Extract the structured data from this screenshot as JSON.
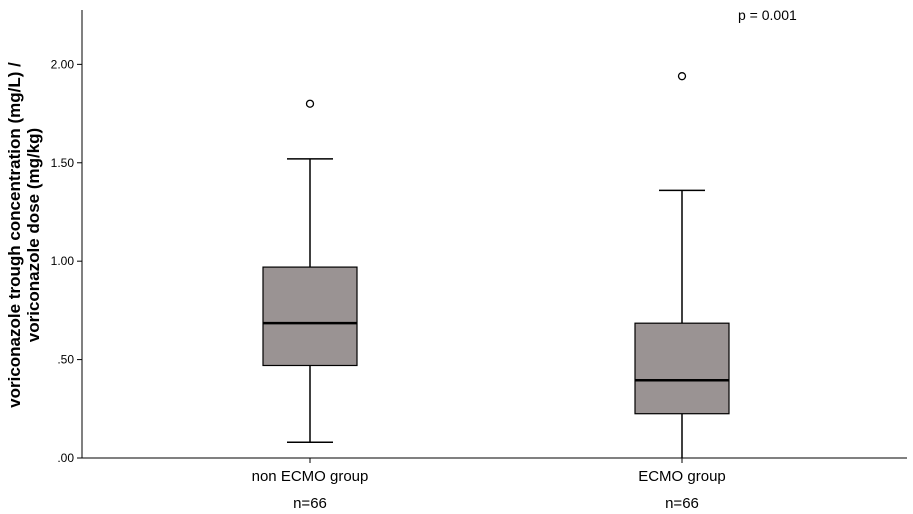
{
  "chart_data": {
    "type": "boxplot",
    "ylabel_lines": [
      "voriconazole trough concentration (mg/L) /",
      "voriconazole dose (mg/kg)"
    ],
    "ylim": [
      0,
      2.2
    ],
    "yticks": [
      0,
      0.5,
      1.0,
      1.5,
      2.0
    ],
    "ytick_labels": [
      ".00",
      ".50",
      "1.00",
      "1.50",
      "2.00"
    ],
    "box_color": "#9a9393",
    "annotation": "p = 0.001",
    "groups": [
      {
        "label": "non ECMO group",
        "n_label": "n=66",
        "whisker_low": 0.08,
        "q1": 0.47,
        "median": 0.685,
        "q3": 0.97,
        "whisker_high": 1.52,
        "outliers": [
          1.8
        ]
      },
      {
        "label": "ECMO group",
        "n_label": "n=66",
        "whisker_low": 0.0,
        "q1": 0.225,
        "median": 0.395,
        "q3": 0.685,
        "whisker_high": 1.36,
        "outliers": [
          1.94
        ]
      }
    ]
  }
}
